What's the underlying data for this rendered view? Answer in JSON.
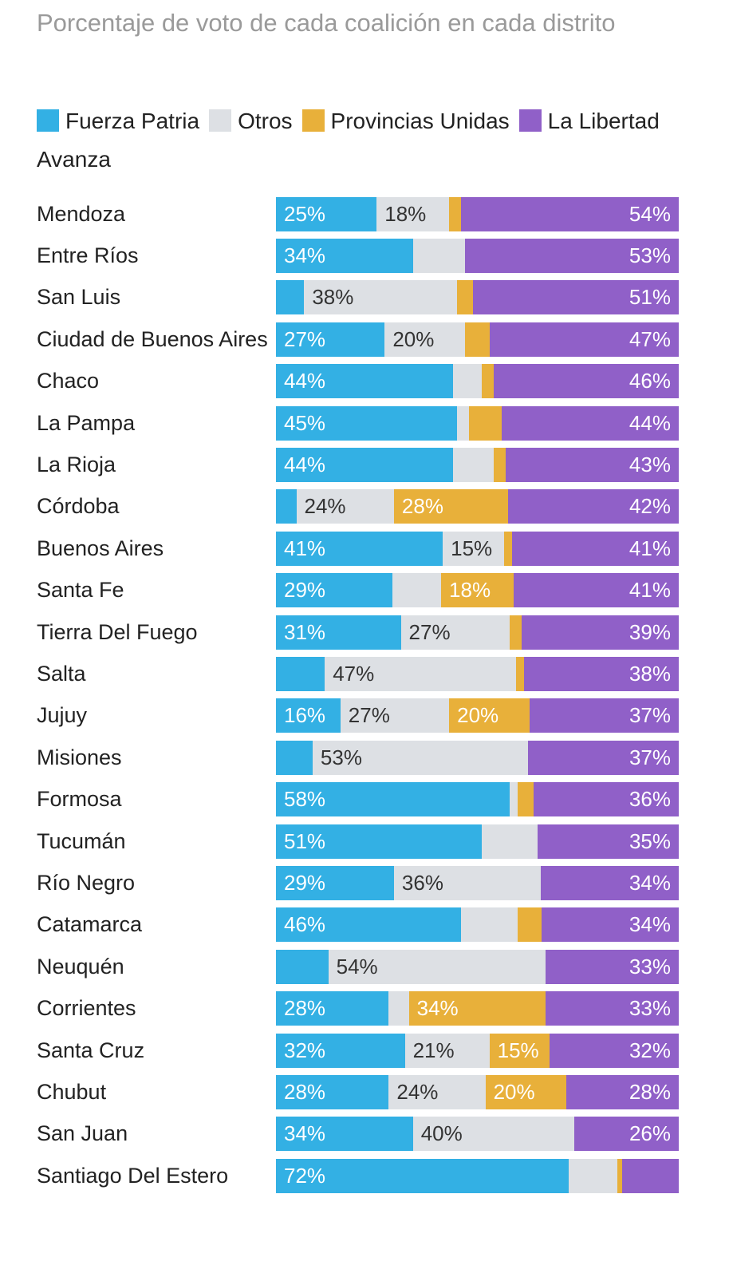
{
  "chart_data": {
    "type": "bar",
    "orientation": "horizontal",
    "stacked": true,
    "title": "Porcentaje de voto de cada coalición en cada distrito",
    "legend_placement": "top",
    "xlim": [
      0,
      100
    ],
    "value_suffix": "%",
    "label_threshold": 15,
    "categories": [
      "Mendoza",
      "Entre Ríos",
      "San Luis",
      "Ciudad de Buenos Aires",
      "Chaco",
      "La Pampa",
      "La Rioja",
      "Córdoba",
      "Buenos Aires",
      "Santa Fe",
      "Tierra Del Fuego",
      "Salta",
      "Jujuy",
      "Misiones",
      "Formosa",
      "Tucumán",
      "Río Negro",
      "Catamarca",
      "Neuquén",
      "Corrientes",
      "Santa Cruz",
      "Chubut",
      "San Juan",
      "Santiago Del Estero"
    ],
    "series": [
      {
        "name": "Fuerza Patria",
        "color": "#33b0e4",
        "label_color": "#ffffff",
        "values": [
          25,
          34,
          7,
          27,
          44,
          45,
          44,
          5,
          41,
          29,
          31,
          12,
          16,
          9,
          58,
          51,
          29,
          46,
          13,
          28,
          32,
          28,
          34,
          72
        ]
      },
      {
        "name": "Otros",
        "color": "#dde0e4",
        "label_color": "#333333",
        "values": [
          18,
          13,
          38,
          20,
          7,
          3,
          10,
          24,
          15,
          12,
          27,
          47,
          27,
          53,
          2,
          14,
          36,
          14,
          54,
          5,
          21,
          24,
          40,
          12
        ]
      },
      {
        "name": "Provincias Unidas",
        "color": "#e8b03a",
        "label_color": "#ffffff",
        "values": [
          3,
          0,
          4,
          6,
          3,
          8,
          3,
          28,
          2,
          18,
          3,
          2,
          20,
          0,
          4,
          0,
          0,
          6,
          0,
          34,
          15,
          20,
          0,
          1
        ]
      },
      {
        "name": "La Libertad Avanza",
        "color": "#9060c8",
        "label_color": "#ffffff",
        "values": [
          54,
          53,
          51,
          47,
          46,
          44,
          43,
          42,
          41,
          41,
          39,
          38,
          37,
          37,
          36,
          35,
          34,
          34,
          33,
          33,
          32,
          28,
          26,
          14
        ]
      }
    ]
  }
}
